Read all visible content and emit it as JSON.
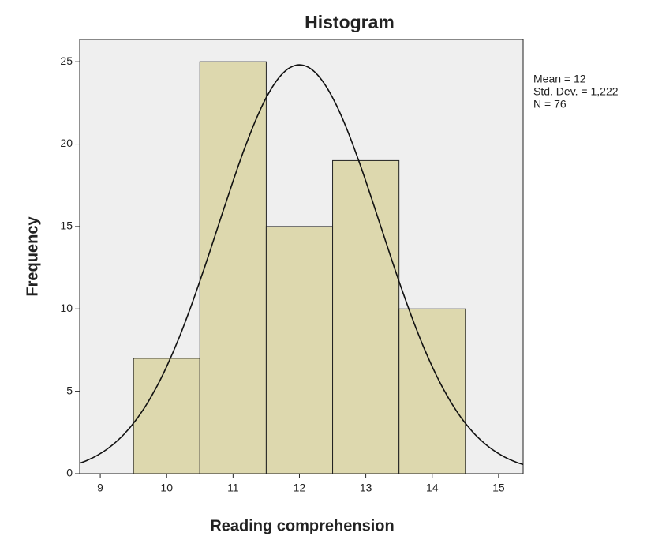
{
  "chart_data": {
    "type": "histogram",
    "title": "Histogram",
    "x_label": "Reading comprehension",
    "y_label": "Frequency",
    "bins": [
      9.5,
      10.5,
      11.5,
      12.5,
      13.5,
      14.5
    ],
    "values": [
      7,
      25,
      15,
      19,
      10
    ],
    "color": "#d9d4a2",
    "xlim": [
      8.69,
      15.37
    ],
    "xticks": [
      9,
      10,
      11,
      12,
      13,
      14,
      15
    ],
    "ylim": [
      0,
      26.35
    ],
    "yticks": [
      0,
      5,
      10,
      15,
      20,
      25
    ],
    "annotations": [
      {
        "value": 12,
        "label": "Mean = 12"
      },
      {
        "value": 1.222,
        "label": "Std. Dev. = 1,222"
      },
      {
        "value": 76,
        "label": "N = 76"
      }
    ],
    "normal_curve": true
  }
}
